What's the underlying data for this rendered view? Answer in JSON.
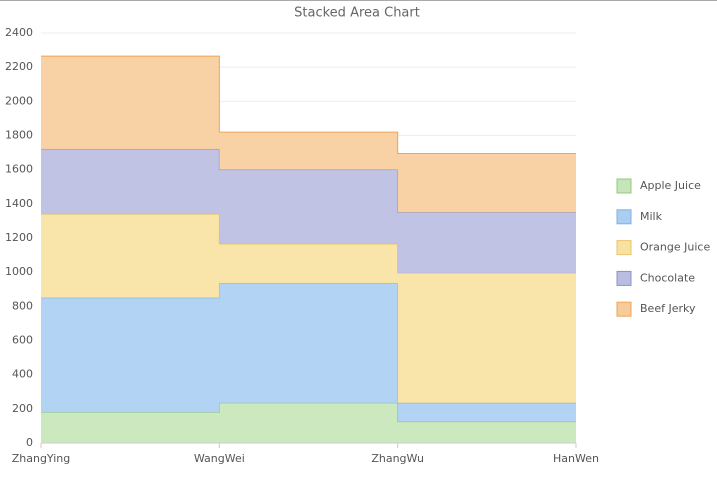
{
  "chart_data": {
    "type": "area",
    "stacked": true,
    "step": "after",
    "title": "Stacked Area Chart",
    "categories": [
      "ZhangYing",
      "WangWei",
      "ZhangWu",
      "HanWen"
    ],
    "series": [
      {
        "name": "Apple Juice",
        "color": "#c6e5b8",
        "stroke": "#93c97e",
        "values": [
          180,
          235,
          125,
          125
        ]
      },
      {
        "name": "Milk",
        "color": "#aacef2",
        "stroke": "#7fb1e3",
        "values": [
          670,
          700,
          110,
          110
        ]
      },
      {
        "name": "Orange Juice",
        "color": "#f8e1a1",
        "stroke": "#e8c66a",
        "values": [
          490,
          230,
          760,
          760
        ]
      },
      {
        "name": "Chocolate",
        "color": "#babde2",
        "stroke": "#8c90c8",
        "values": [
          380,
          435,
          355,
          355
        ]
      },
      {
        "name": "Beef Jerky",
        "color": "#f7cc9a",
        "stroke": "#eea554",
        "values": [
          545,
          220,
          345,
          345
        ]
      }
    ],
    "ylim": [
      0,
      2400
    ],
    "yticks": [
      0,
      200,
      400,
      600,
      800,
      1000,
      1200,
      1400,
      1600,
      1800,
      2000,
      2200,
      2400
    ],
    "grid": true,
    "legend": "right"
  }
}
